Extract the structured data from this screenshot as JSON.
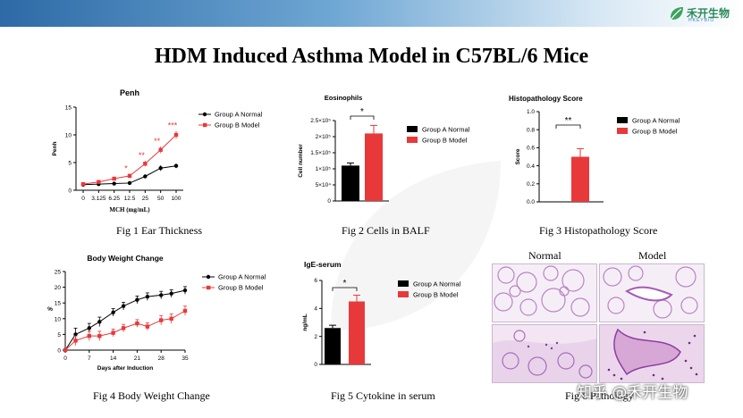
{
  "header": {
    "logo_text": "禾开生物",
    "logo_sub": "HKEYBIO"
  },
  "slide_title": "HDM Induced Asthma Model in C57BL/6 Mice",
  "captions": {
    "fig1": "Fig 1 Ear Thickness",
    "fig2": "Fig 2 Cells in BALF",
    "fig3": "Fig 3 Histopathology Score",
    "fig4": "Fig 4 Body Weight Change",
    "fig5": "Fig 5 Cytokine in serum",
    "fig6": "Fig 6 Pathology"
  },
  "histology": {
    "normal_label": "Normal",
    "model_label": "Model"
  },
  "watermark": {
    "zhihu": "知乎 @禾开生物"
  },
  "colors": {
    "normal": "#000000",
    "model": "#e8393a",
    "title_bar": "#2d6aa6"
  },
  "chart_data": [
    {
      "id": "penh",
      "type": "line",
      "title": "Penh",
      "xlabel": "MCH (mg/mL)",
      "ylabel": "Penh",
      "categories": [
        "0",
        "3.125",
        "6.25",
        "12.5",
        "25",
        "50",
        "100"
      ],
      "ylim": [
        0,
        15
      ],
      "yticks": [
        "0",
        "5",
        "10",
        "15"
      ],
      "series": [
        {
          "name": "Group A Normal",
          "color": "#000000",
          "marker": "circle",
          "values": [
            1.0,
            1.1,
            1.2,
            1.3,
            2.5,
            4.0,
            4.4
          ],
          "errors": [
            0.1,
            0.15,
            0.15,
            0.2,
            0.3,
            0.5,
            0.4
          ]
        },
        {
          "name": "Group B  Model",
          "color": "#e8393a",
          "marker": "square",
          "values": [
            1.1,
            1.5,
            2.1,
            2.6,
            4.8,
            7.3,
            10.0
          ],
          "errors": [
            0.1,
            0.2,
            0.3,
            0.4,
            0.5,
            0.6,
            0.7
          ]
        }
      ],
      "annotations": [
        "",
        "",
        "",
        "*",
        "**",
        "**",
        "***"
      ]
    },
    {
      "id": "eos",
      "type": "bar",
      "title": "Eosinophils",
      "ylabel": "Cell number",
      "categories": [
        "Group A Normal",
        "Group B Model"
      ],
      "values": [
        110000,
        210000
      ],
      "errors": [
        8000,
        25000
      ],
      "ylim": [
        0,
        250000
      ],
      "yticks": [
        "0",
        "5×10⁴",
        "1×10⁵",
        "1.5×10⁵",
        "2×10⁵",
        "2.5×10⁵"
      ],
      "significance": "*"
    },
    {
      "id": "histo",
      "type": "bar",
      "title": "Histopathology Score",
      "ylabel": "Score",
      "categories": [
        "Group A Normal",
        "Group B Model"
      ],
      "values": [
        0,
        0.5
      ],
      "errors": [
        0,
        0.09
      ],
      "ylim": [
        0,
        1.0
      ],
      "yticks": [
        "0.0",
        "0.2",
        "0.4",
        "0.6",
        "0.8",
        "1.0"
      ],
      "significance": "**"
    },
    {
      "id": "bw",
      "type": "line",
      "title": "Body Weight Change",
      "xlabel": "Days after Induction",
      "ylabel": "%",
      "xticks": [
        "0",
        "7",
        "14",
        "21",
        "28",
        "35"
      ],
      "xlim": [
        0,
        35
      ],
      "ylim": [
        0,
        25
      ],
      "yticks": [
        "0",
        "5",
        "10",
        "15",
        "20",
        "25"
      ],
      "series": [
        {
          "name": "Group A Normal",
          "color": "#000000",
          "marker": "circle",
          "x": [
            0,
            3,
            7,
            10,
            14,
            17,
            21,
            24,
            28,
            31,
            35
          ],
          "values": [
            0,
            5,
            7,
            9,
            12,
            14,
            16,
            17,
            17.5,
            18,
            19
          ],
          "errors": [
            0,
            2,
            1.5,
            1.5,
            1.2,
            1.2,
            1.2,
            1.2,
            1.2,
            1.2,
            1.2
          ]
        },
        {
          "name": "Group B Model",
          "color": "#e8393a",
          "marker": "square",
          "x": [
            0,
            3,
            7,
            10,
            14,
            17,
            21,
            24,
            28,
            31,
            35
          ],
          "values": [
            0,
            3,
            4.5,
            4.5,
            5.5,
            7,
            8.5,
            7.5,
            9.5,
            10,
            12.5
          ],
          "errors": [
            0,
            1.5,
            1.5,
            1.5,
            1.2,
            1.2,
            1.2,
            1.2,
            1.5,
            1.5,
            1.5
          ]
        }
      ]
    },
    {
      "id": "ige",
      "type": "bar",
      "title": "IgE-serum",
      "ylabel": "ng/mL",
      "categories": [
        "Group A Normal",
        "Group B Model"
      ],
      "values": [
        2.6,
        4.5
      ],
      "errors": [
        0.2,
        0.45
      ],
      "ylim": [
        0,
        6
      ],
      "yticks": [
        "0",
        "2",
        "4",
        "6"
      ],
      "significance": "*"
    }
  ]
}
